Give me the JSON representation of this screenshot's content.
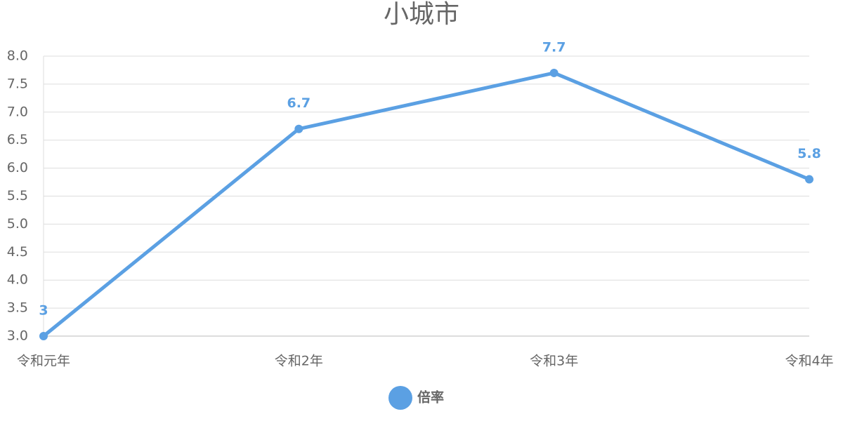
{
  "chart_data": {
    "type": "line",
    "title": "小城市",
    "categories": [
      "令和元年",
      "令和2年",
      "令和3年",
      "令和4年"
    ],
    "series": [
      {
        "name": "倍率",
        "color": "#5ba0e3",
        "values": [
          3,
          6.7,
          7.7,
          5.8
        ]
      }
    ],
    "ylim": [
      3,
      8
    ],
    "yticks": [
      {
        "value": 3,
        "label": "3.0"
      },
      3.5,
      {
        "value": 4,
        "label": "4.0"
      },
      4.5,
      {
        "value": 5,
        "label": "5.0"
      },
      5.5,
      {
        "value": 6,
        "label": "6.0"
      },
      6.5,
      {
        "value": 7,
        "label": "7.0"
      },
      7.5,
      {
        "value": 8,
        "label": "8.0"
      }
    ],
    "grid": true,
    "legend": "bottom"
  }
}
